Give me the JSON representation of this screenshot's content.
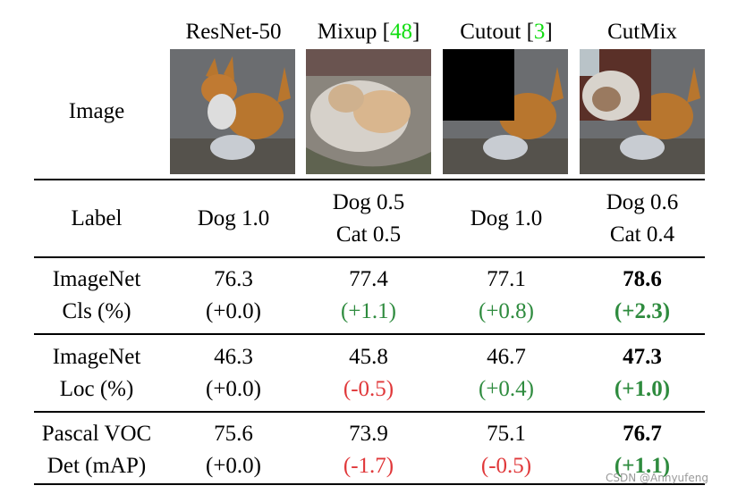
{
  "columns": [
    {
      "name": "ResNet-50",
      "ref": null
    },
    {
      "name": "Mixup [",
      "ref": "48",
      "close": "]"
    },
    {
      "name": "Cutout [",
      "ref": "3",
      "close": "]"
    },
    {
      "name": "CutMix",
      "ref": null
    }
  ],
  "row_labels": {
    "image": "Image",
    "label": "Label",
    "cls": [
      "ImageNet",
      "Cls (%)"
    ],
    "loc": [
      "ImageNet",
      "Loc (%)"
    ],
    "det": [
      "Pascal VOC",
      "Det (mAP)"
    ]
  },
  "labels": [
    [
      "Dog 1.0"
    ],
    [
      "Dog 0.5",
      "Cat 0.5"
    ],
    [
      "Dog 1.0"
    ],
    [
      "Dog 0.6",
      "Cat 0.4"
    ]
  ],
  "rows": {
    "cls": [
      {
        "value": "76.3",
        "delta": "(+0.0)",
        "tone": "neutral"
      },
      {
        "value": "77.4",
        "delta": "(+1.1)",
        "tone": "positive"
      },
      {
        "value": "77.1",
        "delta": "(+0.8)",
        "tone": "positive"
      },
      {
        "value": "78.6",
        "delta": "(+2.3)",
        "tone": "positive",
        "best": true
      }
    ],
    "loc": [
      {
        "value": "46.3",
        "delta": "(+0.0)",
        "tone": "neutral"
      },
      {
        "value": "45.8",
        "delta": "(-0.5)",
        "tone": "negative"
      },
      {
        "value": "46.7",
        "delta": "(+0.4)",
        "tone": "positive"
      },
      {
        "value": "47.3",
        "delta": "(+1.0)",
        "tone": "positive",
        "best": true
      }
    ],
    "det": [
      {
        "value": "75.6",
        "delta": "(+0.0)",
        "tone": "neutral"
      },
      {
        "value": "73.9",
        "delta": "(-1.7)",
        "tone": "negative"
      },
      {
        "value": "75.1",
        "delta": "(-0.5)",
        "tone": "negative"
      },
      {
        "value": "76.7",
        "delta": "(+1.1)",
        "tone": "positive",
        "best": true
      }
    ]
  },
  "colors": {
    "positive": "#2e8b3e",
    "negative": "#e0383a",
    "citation": "#11dd11"
  },
  "watermark": "CSDN @Annyufeng"
}
